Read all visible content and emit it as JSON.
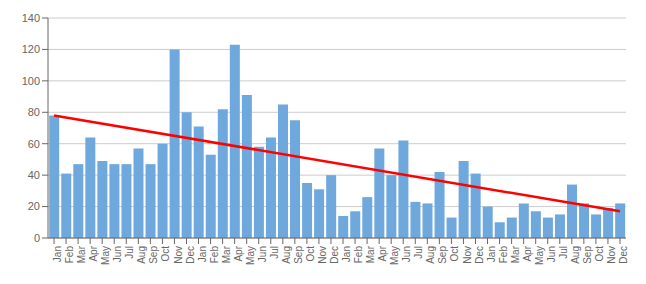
{
  "chart_data": {
    "type": "bar",
    "categories": [
      "Jan",
      "Feb",
      "Mar",
      "Apr",
      "May",
      "Jun",
      "Jul",
      "Aug",
      "Sep",
      "Oct",
      "Nov",
      "Dec",
      "Jan",
      "Feb",
      "Mar",
      "Apr",
      "May",
      "Jun",
      "Jul",
      "Aug",
      "Sep",
      "Oct",
      "Nov",
      "Dec",
      "Jan",
      "Feb",
      "Mar",
      "Apr",
      "May",
      "Jun",
      "Jul",
      "Aug",
      "Sep",
      "Oct",
      "Nov",
      "Dec",
      "Jan",
      "Feb",
      "Mar",
      "Apr",
      "May",
      "Jun",
      "Jul",
      "Aug",
      "Sep",
      "Oct",
      "Nov",
      "Dec"
    ],
    "values": [
      78,
      41,
      47,
      64,
      49,
      47,
      47,
      57,
      47,
      60,
      120,
      80,
      71,
      53,
      82,
      123,
      91,
      58,
      64,
      85,
      75,
      35,
      31,
      40,
      14,
      17,
      26,
      57,
      40,
      62,
      23,
      22,
      42,
      13,
      49,
      41,
      20,
      10,
      13,
      22,
      17,
      13,
      15,
      34,
      22,
      15,
      19,
      22
    ],
    "color": "#6fa8dc",
    "trend_line": {
      "start": 78,
      "end": 17,
      "color": "red"
    },
    "ylim": [
      0,
      140
    ],
    "yticks": [
      0,
      20,
      40,
      60,
      80,
      100,
      120,
      140
    ],
    "grid": true
  }
}
